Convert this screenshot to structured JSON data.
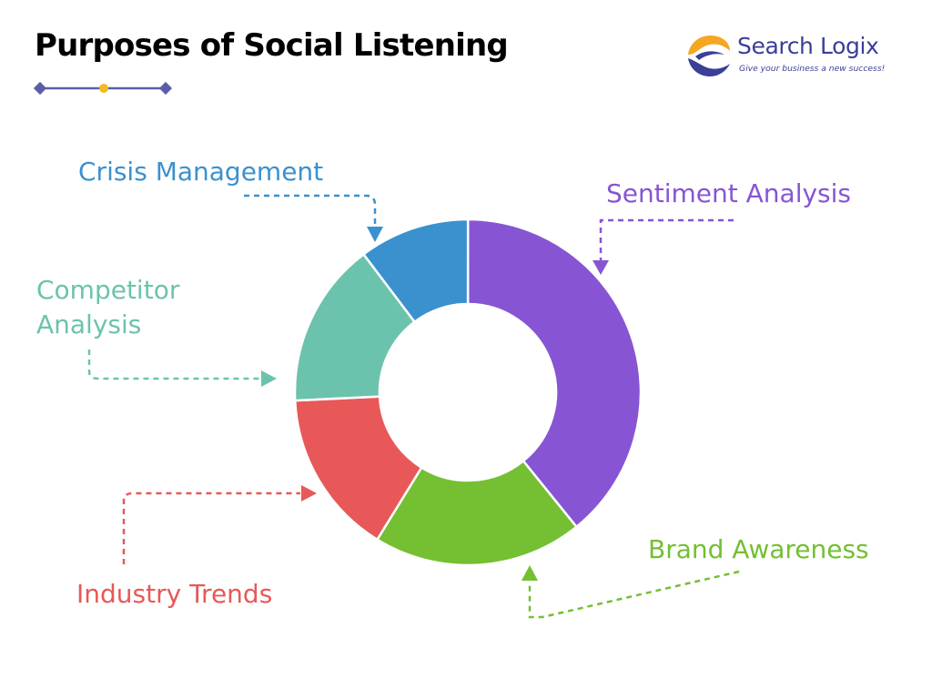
{
  "header": {
    "title": "Purposes of Social Listening"
  },
  "logo": {
    "name": "Search Logix",
    "tagline": "Give your business a new success!",
    "colors": [
      "#f5a623",
      "#3a3f97"
    ]
  },
  "colors": {
    "ornament_line": "#5b5ea6",
    "ornament_dot": "#f5b921"
  },
  "chart_data": {
    "type": "donut",
    "title": "",
    "slices": [
      {
        "label": "Sentiment Analysis",
        "value": 38,
        "color": "#8755d3"
      },
      {
        "label": "Brand Awareness",
        "value": 19,
        "color": "#74bf32"
      },
      {
        "label": "Industry Trends",
        "value": 15,
        "color": "#e85858"
      },
      {
        "label": "Competitor Analysis",
        "value": 15,
        "color": "#6cc3ad"
      },
      {
        "label": "Crisis Management",
        "value": 10,
        "color": "#3a91ce"
      }
    ],
    "legend": "callout labels with dashed arrow connectors"
  }
}
